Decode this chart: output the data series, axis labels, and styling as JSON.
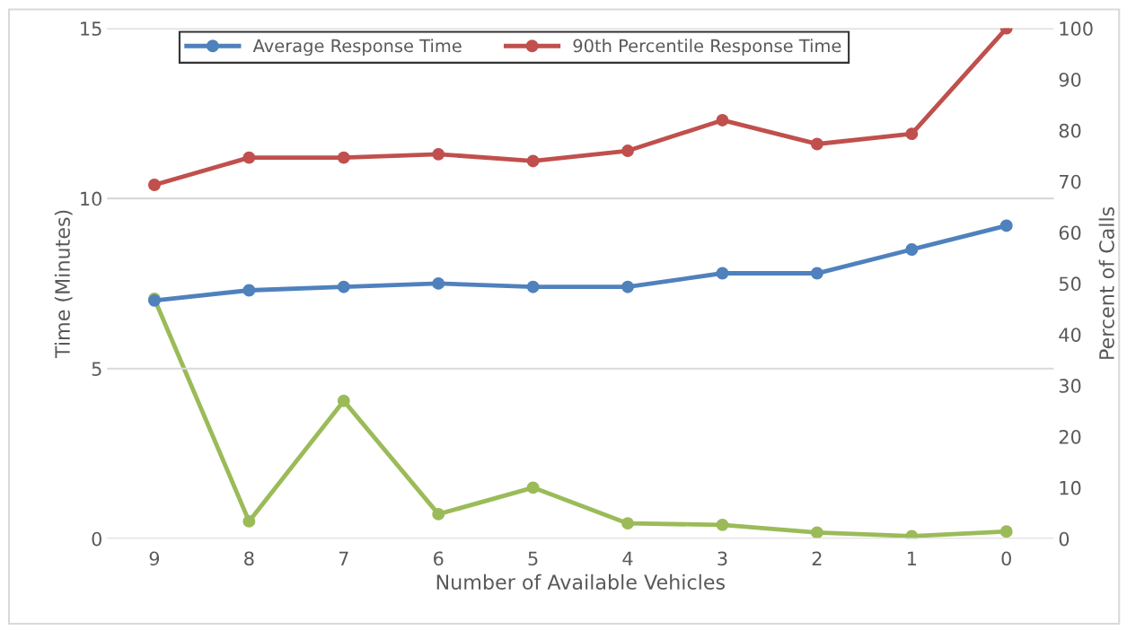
{
  "chart_data": {
    "type": "line",
    "xlabel": "Number of Available Vehicles",
    "ylabel": "Time (Minutes)",
    "y2label": "Percent of Calls",
    "categories": [
      "9",
      "8",
      "7",
      "6",
      "5",
      "4",
      "3",
      "2",
      "1",
      "0"
    ],
    "series": [
      {
        "name": "Average Response Time",
        "color": "#4f81bd",
        "values": [
          7.0,
          7.3,
          7.4,
          7.5,
          7.4,
          7.4,
          7.8,
          7.8,
          8.5,
          9.2
        ]
      },
      {
        "name": "90th Percentile Response Time",
        "color": "#c0504d",
        "values": [
          10.4,
          11.2,
          11.2,
          11.3,
          11.1,
          11.4,
          12.3,
          11.6,
          11.9,
          15.0
        ]
      },
      {
        "color": "#9bbb59",
        "axis": "y2",
        "values": [
          47,
          3.4,
          27,
          4.8,
          10,
          3.0,
          2.7,
          1.2,
          0.5,
          1.4
        ]
      }
    ],
    "ylim": [
      0,
      15
    ],
    "yticks": [
      0,
      5,
      10,
      15
    ],
    "y2lim": [
      0,
      100
    ],
    "y2ticks": [
      0,
      10,
      20,
      30,
      40,
      50,
      60,
      70,
      80,
      90,
      100
    ],
    "grid": "y",
    "legend": "top",
    "marker": "circle",
    "line_style": "solid"
  }
}
